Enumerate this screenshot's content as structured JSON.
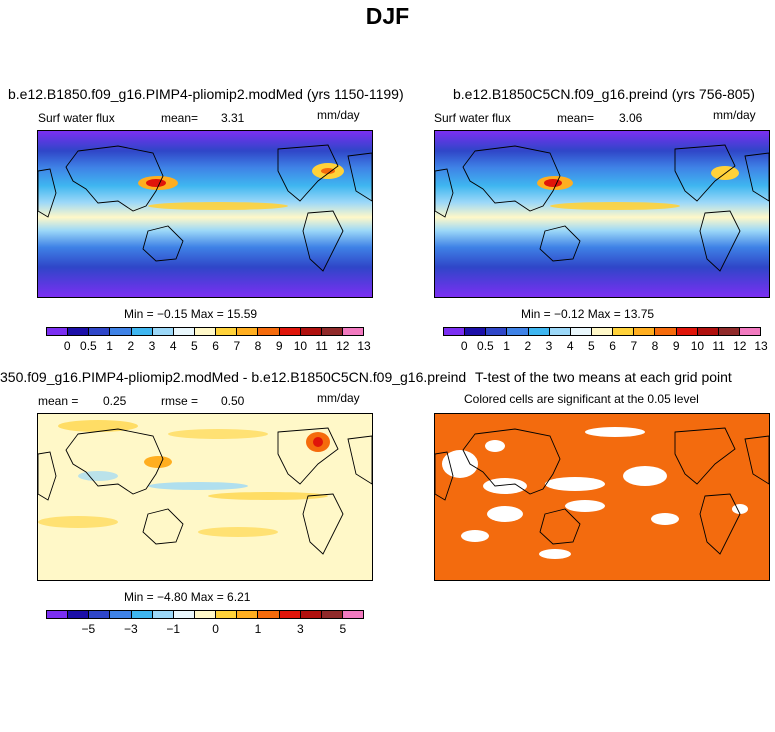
{
  "title": "DJF",
  "panels": {
    "p1": {
      "title": "b.e12.B1850.f09_g16.PIMP4-pliomip2.modMed (yrs 1150-1199)",
      "variable": "Surf water flux",
      "mean_label": "mean=",
      "mean_value": "3.31",
      "units": "mm/day",
      "minmax": "Min =  −0.15  Max =   15.59"
    },
    "p2": {
      "title": "b.e12.B1850C5CN.f09_g16.preind (yrs 756-805)",
      "variable": "Surf water flux",
      "mean_label": "mean=",
      "mean_value": "3.06",
      "units": "mm/day",
      "minmax": "Min =  −0.12  Max =   13.75"
    },
    "p3": {
      "title": "350.f09_g16.PIMP4-pliomip2.modMed - b.e12.B1850C5CN.f09_g16.preind",
      "mean_label": "mean =",
      "mean_value": "0.25",
      "rmse_label": "rmse =",
      "rmse_value": "0.50",
      "units": "mm/day",
      "minmax": "Min =  −4.80  Max =   6.21"
    },
    "p4": {
      "title": "T-test of the two means at each grid point",
      "subtitle": "Colored cells are significant at the 0.05 level"
    }
  },
  "colorbar_abs": {
    "colors": [
      "#7b2ff2",
      "#1c0fa8",
      "#2f46c8",
      "#3f82e6",
      "#3fb6f0",
      "#9cd8f8",
      "#e9f7fc",
      "#fff8c8",
      "#ffd23a",
      "#ffae20",
      "#f56b0c",
      "#e0150a",
      "#b0100e",
      "#902a2a",
      "#f27ac0"
    ],
    "labels": [
      "0",
      "0.5",
      "1",
      "2",
      "3",
      "4",
      "5",
      "6",
      "7",
      "8",
      "9",
      "10",
      "11",
      "12",
      "13"
    ]
  },
  "colorbar_diff": {
    "colors": [
      "#7b2ff2",
      "#1c0fa8",
      "#2f46c8",
      "#3f82e6",
      "#3fb6f0",
      "#9cd8f8",
      "#e9f7fc",
      "#fff8c8",
      "#ffd23a",
      "#ffae20",
      "#f56b0c",
      "#e0150a",
      "#b0100e",
      "#902a2a",
      "#f27ac0"
    ],
    "labels": [
      "−5",
      "−3",
      "−1",
      "0",
      "1",
      "3",
      "5"
    ]
  },
  "colors": {
    "ttest_significant": "#f36b0e",
    "low_flux": "#7b2ff2",
    "moderate_flux": "#3fb6f0",
    "high_flux": "#e0150a"
  }
}
